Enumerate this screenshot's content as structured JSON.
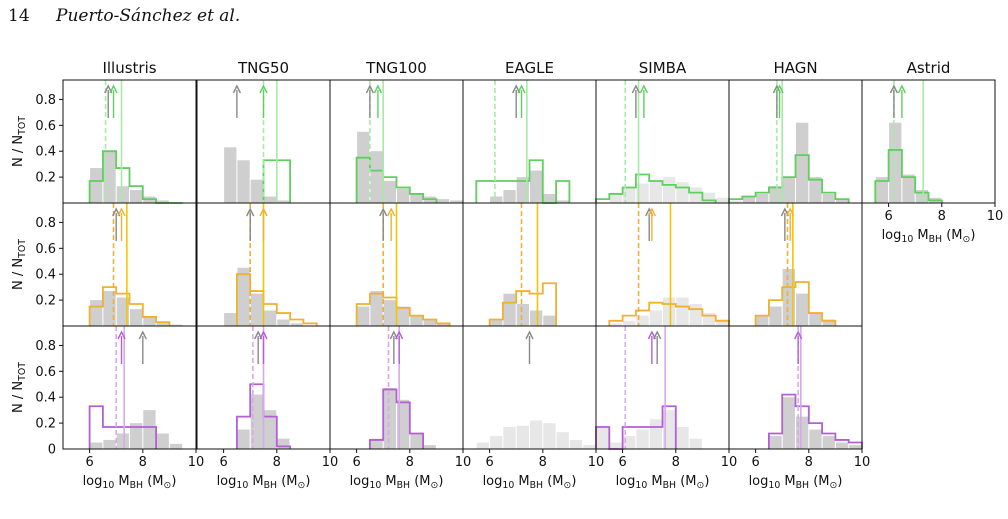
{
  "page": {
    "number": "14",
    "authors": "Puerto-Sánchez et al."
  },
  "colors": {
    "row1": "#5fcf5f",
    "row1_light": "#a7eaa7",
    "row2": "#f0b12e",
    "row2_light": "#f7d07a",
    "row3": "#b45fd6",
    "row3_light": "#d8a9ea",
    "gray": "#cfcfcf",
    "gray_light": "#e7e7e7",
    "arrow_gray": "#888888",
    "row2_vline": "#f5c400"
  },
  "chart_data": {
    "type": "bar",
    "title": "",
    "columns": [
      "Illustris",
      "TNG50",
      "TNG100",
      "EAGLE",
      "SIMBA",
      "HAGN",
      "Astrid"
    ],
    "ylabel": "N / N_TOT",
    "xlabel": "log10 M_BH (M☉)",
    "xlim": [
      5,
      10
    ],
    "ylim": [
      0,
      0.95
    ],
    "yticks": [
      0.2,
      0.4,
      0.6,
      0.8
    ],
    "xticks": [
      6,
      8,
      10
    ],
    "bin_width": 0.5,
    "rows": [
      {
        "panels": [
          {
            "gray_start": 6.0,
            "gray": [
              0.27,
              0.4,
              0.13,
              0.1,
              0.05,
              0.02,
              0,
              0
            ],
            "color_start": 6.0,
            "color": [
              0.17,
              0.4,
              0.27,
              0.13,
              0.03,
              0,
              0
            ],
            "arrows_gray": [
              6.7
            ],
            "arrows_color": [
              6.9
            ],
            "vdash": 6.6,
            "vline": 7.2
          },
          {
            "gray_start": 6.0,
            "gray": [
              0.43,
              0.33,
              0.18,
              0.05,
              0.02
            ],
            "color_start": 7.5,
            "color": [
              0.33,
              0.33
            ],
            "arrows_gray": [
              6.5
            ],
            "arrows_color": [
              7.5
            ],
            "vdash": 7.5,
            "vline": 8.0
          },
          {
            "gray_start": 6.0,
            "gray": [
              0.55,
              0.4,
              0.17,
              0.11,
              0.07,
              0.05,
              0.03,
              0.02
            ],
            "color_start": 6.0,
            "color": [
              0.35,
              0.25,
              0.2,
              0.12,
              0.07,
              0.03
            ],
            "arrows_gray": [
              6.5
            ],
            "arrows_color": [
              6.8
            ],
            "vdash": 6.5,
            "vline": 7.0
          },
          {
            "gray_start": 6.0,
            "gray": [
              0.05,
              0.1,
              0.2,
              0.25,
              0.07,
              0.02,
              0,
              0
            ],
            "color_start": 5.5,
            "color": [
              0.17,
              0.17,
              0.17,
              0.17,
              0.33,
              0,
              0.17
            ],
            "arrows_gray": [
              7.0
            ],
            "arrows_color": [
              7.2
            ],
            "vdash": 6.2,
            "vline": 7.4
          },
          {
            "gray_start": 5.5,
            "gray": [
              0.08,
              0.12,
              0.15,
              0.18,
              0.2,
              0.16,
              0.12,
              0.08,
              0.04,
              0.02
            ],
            "color_start": 5.0,
            "color": [
              0.03,
              0.07,
              0.12,
              0.22,
              0.17,
              0.14,
              0.12,
              0.08,
              0.02
            ],
            "arrows_gray": [
              6.5
            ],
            "arrows_color": [
              6.8
            ],
            "vdash": 6.1,
            "vline": 6.6
          },
          {
            "gray_start": 5.5,
            "gray": [
              0.05,
              0.07,
              0.13,
              0.2,
              0.62,
              0.2,
              0.07,
              0.03
            ],
            "color_start": 5.0,
            "color": [
              0.03,
              0.05,
              0.08,
              0.12,
              0.2,
              0.37,
              0.18,
              0.08,
              0.03
            ],
            "arrows_gray": [
              6.8
            ],
            "arrows_color": [
              6.9
            ],
            "vdash": 6.8,
            "vline": 7.0
          },
          {
            "gray_start": 5.5,
            "gray": [
              0.2,
              0.62,
              0.22,
              0.1,
              0.04
            ],
            "color_start": 5.5,
            "color": [
              0.17,
              0.41,
              0.2,
              0.08,
              0.02
            ],
            "arrows_gray": [
              6.2
            ],
            "arrows_color": [
              6.5
            ],
            "vdash": 6.2,
            "vline": 7.3
          }
        ]
      },
      {
        "panels": [
          {
            "gray_start": 6.0,
            "gray": [
              0.2,
              0.27,
              0.22,
              0.13,
              0.07,
              0.03,
              0.01
            ],
            "color_start": 6.0,
            "color": [
              0.15,
              0.3,
              0.25,
              0.17,
              0.07,
              0.03
            ],
            "arrows_gray": [
              7.0
            ],
            "arrows_color": [
              7.2
            ],
            "vdash": 6.9,
            "vline": 7.4
          },
          {
            "gray_start": 6.0,
            "gray": [
              0.1,
              0.45,
              0.25,
              0.12,
              0.05,
              0.02
            ],
            "color_start": 6.5,
            "color": [
              0.4,
              0.27,
              0.17,
              0.1,
              0.05,
              0.02
            ],
            "arrows_gray": [
              7.0
            ],
            "arrows_color": [
              7.5
            ],
            "vdash": 7.0,
            "vline": 7.5
          },
          {
            "gray_start": 6.0,
            "gray": [
              0.15,
              0.27,
              0.2,
              0.15,
              0.08,
              0.05,
              0.02
            ],
            "color_start": 6.0,
            "color": [
              0.17,
              0.25,
              0.22,
              0.14,
              0.08,
              0.05,
              0.02
            ],
            "arrows_gray": [
              7.0
            ],
            "arrows_color": [
              7.3
            ],
            "vdash": 7.0,
            "vline": 7.5
          },
          {
            "gray_start": 6.0,
            "gray": [
              0.05,
              0.25,
              0.17,
              0.12,
              0.08
            ],
            "color_start": 6.0,
            "color": [
              0.05,
              0.18,
              0.27,
              0.25,
              0.33
            ],
            "arrows_gray": [],
            "arrows_color": [],
            "vdash": 7.2,
            "vline": 7.8
          },
          {
            "gray_start": 5.5,
            "gray": [
              0.02,
              0.04,
              0.08,
              0.12,
              0.22,
              0.22,
              0.17,
              0.1,
              0.05
            ],
            "color_start": 5.5,
            "color": [
              0.04,
              0.08,
              0.12,
              0.18,
              0.17,
              0.15,
              0.13,
              0.08,
              0.04
            ],
            "arrows_gray": [
              7.0
            ],
            "arrows_color": [
              7.1
            ],
            "vdash": 6.6,
            "vline": 7.8
          },
          {
            "gray_start": 6.0,
            "gray": [
              0.08,
              0.15,
              0.44,
              0.25,
              0.1,
              0.05
            ],
            "color_start": 6.0,
            "color": [
              0.08,
              0.2,
              0.3,
              0.34,
              0.1,
              0.04
            ],
            "arrows_gray": [
              7.1
            ],
            "arrows_color": [
              7.3
            ],
            "vdash": 7.2,
            "vline": 7.4
          }
        ]
      },
      {
        "panels": [
          {
            "gray_start": 6.0,
            "gray": [
              0.05,
              0.07,
              0.12,
              0.2,
              0.3,
              0.12,
              0.04
            ],
            "color_start": 6.0,
            "color": [
              0.33,
              0.17,
              0.17,
              0.17,
              0.17
            ],
            "arrows_gray": [
              8.0
            ],
            "arrows_color": [
              7.2
            ],
            "vdash": 7.0,
            "vline": 7.3
          },
          {
            "gray_start": 6.5,
            "gray": [
              0.15,
              0.42,
              0.3,
              0.08
            ],
            "color_start": 6.5,
            "color": [
              0.25,
              0.5,
              0.25,
              0.02
            ],
            "arrows_gray": [
              7.3
            ],
            "arrows_color": [
              7.5
            ],
            "vdash": 7.1,
            "vline": 7.5
          },
          {
            "gray_start": 6.5,
            "gray": [
              0.08,
              0.47,
              0.38,
              0.12,
              0.03
            ],
            "color_start": 6.5,
            "color": [
              0.07,
              0.46,
              0.36,
              0.12
            ],
            "arrows_gray": [
              7.4
            ],
            "arrows_color": [
              7.6
            ],
            "vdash": 7.2,
            "vline": 7.6
          },
          {
            "gray_start": 5.5,
            "gray": [
              0.05,
              0.1,
              0.17,
              0.18,
              0.22,
              0.2,
              0.13,
              0.07,
              0.03
            ],
            "color_start": 5.5,
            "color": [],
            "arrows_gray": [
              7.5
            ],
            "arrows_color": [],
            "vdash": null,
            "vline": null
          },
          {
            "gray_start": 5.0,
            "gray": [
              0.17,
              0.05,
              0.1,
              0.15,
              0.23,
              0.3,
              0.17,
              0.08
            ],
            "color_start": 5.0,
            "color": [
              0.17,
              0,
              0.17,
              0.17,
              0.17,
              0.33
            ],
            "arrows_gray": [
              7.3
            ],
            "arrows_color": [
              7.1
            ],
            "vdash": 6.1,
            "vline": 7.6
          },
          {
            "gray_start": 6.5,
            "gray": [
              0.1,
              0.4,
              0.25,
              0.15,
              0.1,
              0.05,
              0.03
            ],
            "color_start": 6.5,
            "color": [
              0.12,
              0.42,
              0.33,
              0.2,
              0.12,
              0.07,
              0.05
            ],
            "arrows_gray": [],
            "arrows_color": [
              7.6
            ],
            "vdash": 7.6,
            "vline": 7.7
          }
        ]
      }
    ]
  }
}
